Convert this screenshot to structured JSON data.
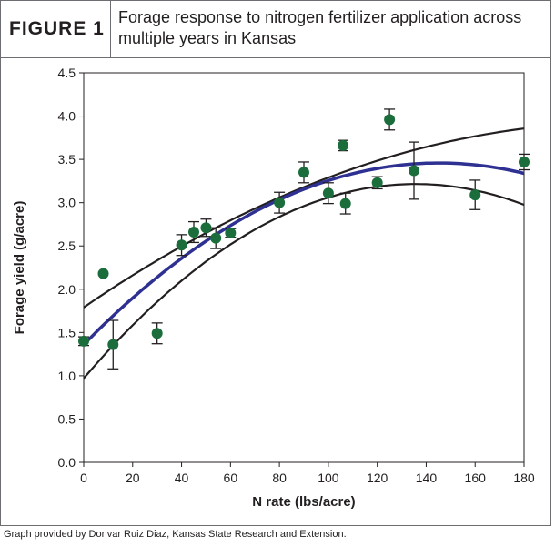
{
  "figure": {
    "label": "FIGURE 1",
    "title": "Forage response to nitrogen fertilizer application across multiple years in Kansas",
    "credit": "Graph provided by Dorivar Ruiz Diaz, Kansas State Research and Extension."
  },
  "colors": {
    "point": "#1b6e3c",
    "fit_line": "#2e3192",
    "band_line": "#231f20",
    "frame": "#6d6e71"
  },
  "chart_data": {
    "type": "scatter",
    "title": "Forage response to nitrogen fertilizer application across multiple years in Kansas",
    "xlabel": "N rate (lbs/acre)",
    "ylabel": "Forage yield (g/acre)",
    "xlim": [
      0,
      180
    ],
    "ylim": [
      0,
      4.5
    ],
    "xticks": [
      0,
      20,
      40,
      60,
      80,
      100,
      120,
      140,
      160,
      180
    ],
    "yticks": [
      "0.0",
      "0.5",
      "1.0",
      "1.5",
      "2.0",
      "2.5",
      "3.0",
      "3.5",
      "4.0",
      "4.5"
    ],
    "grid": false,
    "legend": "none",
    "points": [
      {
        "x": 0,
        "y": 1.4,
        "err": 0.05
      },
      {
        "x": 8,
        "y": 2.18,
        "err": null
      },
      {
        "x": 12,
        "y": 1.36,
        "err": 0.28
      },
      {
        "x": 30,
        "y": 1.49,
        "err": 0.12
      },
      {
        "x": 40,
        "y": 2.51,
        "err": 0.12
      },
      {
        "x": 45,
        "y": 2.66,
        "err": 0.12
      },
      {
        "x": 50,
        "y": 2.71,
        "err": 0.1
      },
      {
        "x": 54,
        "y": 2.59,
        "err": 0.12
      },
      {
        "x": 60,
        "y": 2.65,
        "err": 0.05
      },
      {
        "x": 80,
        "y": 3.0,
        "err": 0.12
      },
      {
        "x": 90,
        "y": 3.35,
        "err": 0.12
      },
      {
        "x": 100,
        "y": 3.11,
        "err": 0.12
      },
      {
        "x": 106,
        "y": 3.66,
        "err": 0.06
      },
      {
        "x": 107,
        "y": 2.99,
        "err": 0.12
      },
      {
        "x": 120,
        "y": 3.23,
        "err": 0.07
      },
      {
        "x": 125,
        "y": 3.96,
        "err": 0.12
      },
      {
        "x": 135,
        "y": 3.37,
        "err": 0.33
      },
      {
        "x": 160,
        "y": 3.09,
        "err": 0.17
      },
      {
        "x": 180,
        "y": 3.47,
        "err": 0.09
      }
    ],
    "fit_curve": {
      "coeffs": [
        1.36,
        0.0289,
        -9.95e-05
      ]
    },
    "upper_band": {
      "coeffs": [
        1.79,
        0.0194,
        -4.4e-05
      ]
    },
    "lower_band": {
      "coeffs": [
        0.97,
        0.0331,
        -0.000122
      ]
    }
  }
}
